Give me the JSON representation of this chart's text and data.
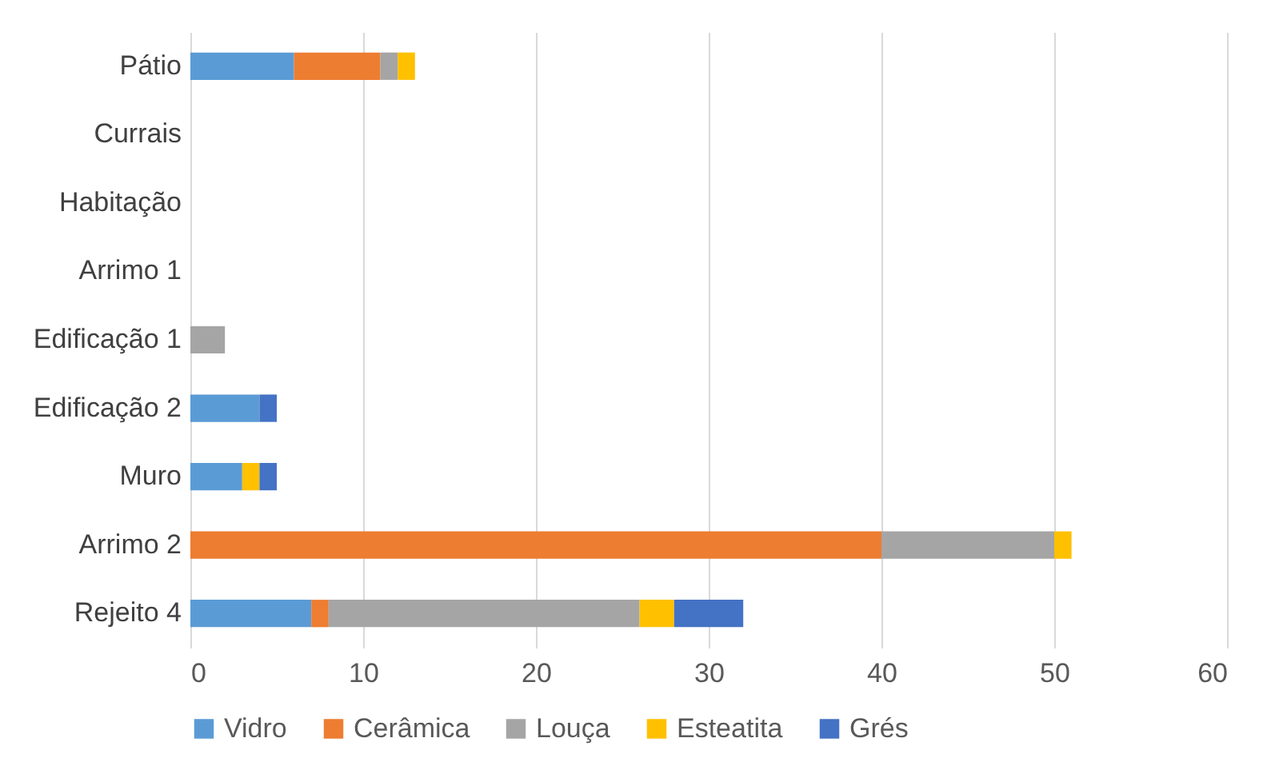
{
  "chart_data": {
    "type": "bar",
    "orientation": "horizontal",
    "stacked": true,
    "categories": [
      "Pátio",
      "Currais",
      "Habitação",
      "Arrimo 1",
      "Edificação 1",
      "Edificação 2",
      "Muro",
      "Arrimo 2",
      "Rejeito 4"
    ],
    "series": [
      {
        "name": "Vidro",
        "color": "#5b9bd5",
        "values": [
          6,
          null,
          null,
          null,
          null,
          4,
          3,
          null,
          7
        ]
      },
      {
        "name": "Cerâmica",
        "color": "#ed7d31",
        "values": [
          5,
          null,
          null,
          null,
          null,
          null,
          null,
          40,
          1
        ]
      },
      {
        "name": "Louça",
        "color": "#a5a5a5",
        "values": [
          1,
          null,
          null,
          null,
          2,
          null,
          null,
          10,
          18
        ]
      },
      {
        "name": "Esteatita",
        "color": "#ffc000",
        "values": [
          1,
          null,
          null,
          null,
          null,
          null,
          1,
          1,
          2
        ]
      },
      {
        "name": "Grés",
        "color": "#4472c4",
        "values": [
          null,
          null,
          null,
          null,
          null,
          1,
          1,
          null,
          4
        ]
      }
    ],
    "xlim": [
      0,
      60
    ],
    "xticks": [
      0,
      10,
      20,
      30,
      40,
      50,
      60
    ],
    "grid": "x",
    "legend": "bottom"
  }
}
